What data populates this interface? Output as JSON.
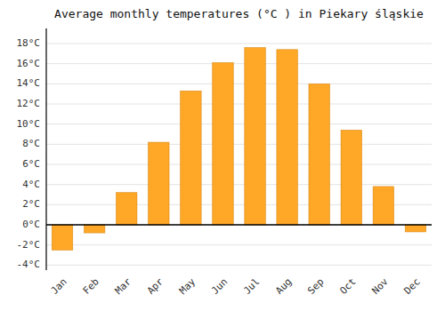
{
  "chart_data": {
    "type": "bar",
    "title": "Average monthly temperatures (°C ) in Piekary śląskie",
    "categories": [
      "Jan",
      "Feb",
      "Mar",
      "Apr",
      "May",
      "Jun",
      "Jul",
      "Aug",
      "Sep",
      "Oct",
      "Nov",
      "Dec"
    ],
    "values": [
      -2.5,
      -0.8,
      3.2,
      8.2,
      13.3,
      16.1,
      17.6,
      17.4,
      14.0,
      9.4,
      3.8,
      -0.7
    ],
    "color": "#FFA726",
    "ylim": [
      -4.5,
      19.5
    ],
    "yticks": [
      {
        "value": -4,
        "label": "-4°C"
      },
      {
        "value": -2,
        "label": "-2°C"
      },
      {
        "value": 0,
        "label": "0°C"
      },
      {
        "value": 2,
        "label": "2°C"
      },
      {
        "value": 4,
        "label": "4°C"
      },
      {
        "value": 6,
        "label": "6°C"
      },
      {
        "value": 8,
        "label": "8°C"
      },
      {
        "value": 10,
        "label": "10°C"
      },
      {
        "value": 12,
        "label": "12°C"
      },
      {
        "value": 14,
        "label": "14°C"
      },
      {
        "value": 16,
        "label": "16°C"
      },
      {
        "value": 18,
        "label": "18°C"
      }
    ],
    "grid": true
  }
}
